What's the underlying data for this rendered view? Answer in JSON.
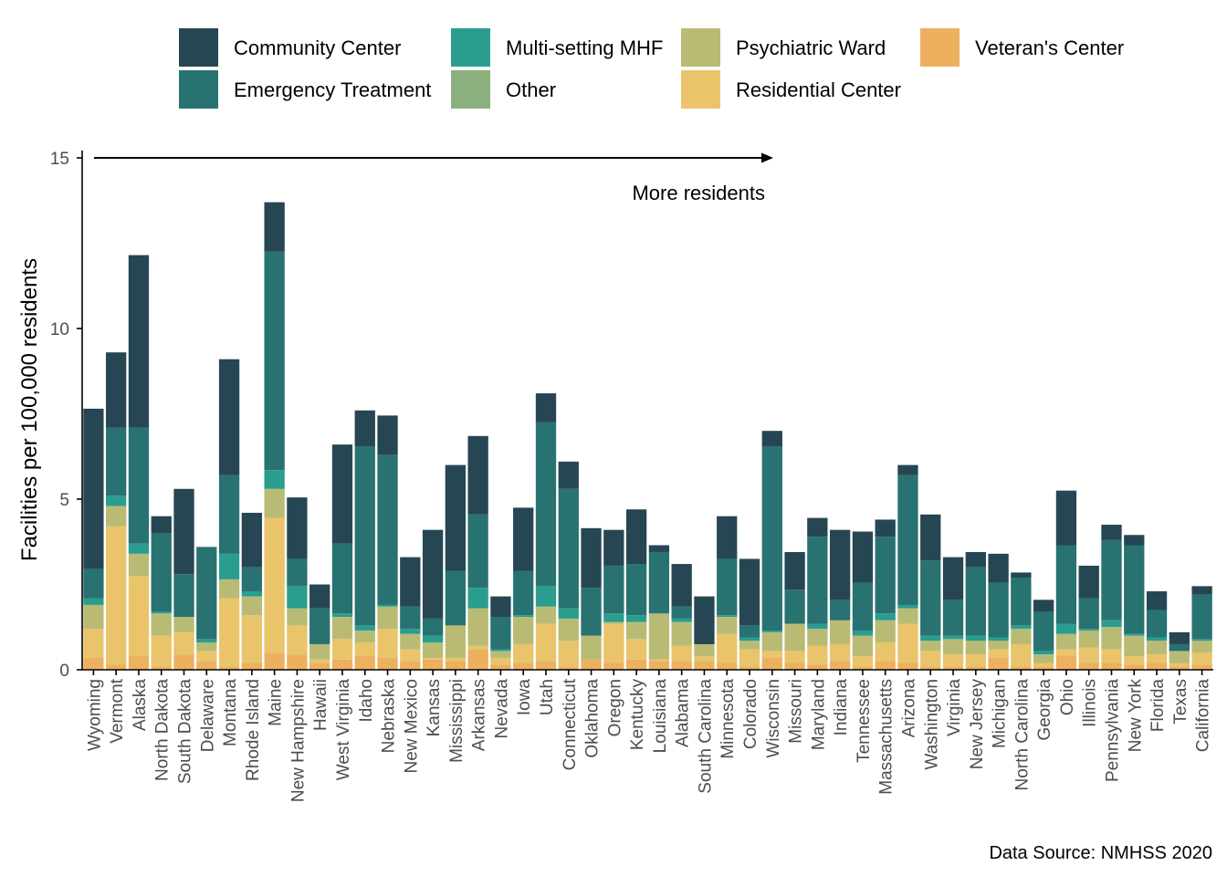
{
  "chart_data": {
    "type": "bar",
    "stacked": true,
    "title": "",
    "xlabel": "",
    "ylabel": "Facilities per 100,000 residents",
    "ylim": [
      0,
      15
    ],
    "yticks": [
      0,
      5,
      10,
      15
    ],
    "grid": false,
    "legend_position": "top",
    "annotation": "More residents",
    "source": "Data Source: NMHSS 2020",
    "categories": [
      "Wyoming",
      "Vermont",
      "Alaska",
      "North Dakota",
      "South Dakota",
      "Delaware",
      "Montana",
      "Rhode Island",
      "Maine",
      "New Hampshire",
      "Hawaii",
      "West Virginia",
      "Idaho",
      "Nebraska",
      "New Mexico",
      "Kansas",
      "Mississippi",
      "Arkansas",
      "Nevada",
      "Iowa",
      "Utah",
      "Connecticut",
      "Oklahoma",
      "Oregon",
      "Kentucky",
      "Louisiana",
      "Alabama",
      "South Carolina",
      "Minnesota",
      "Colorado",
      "Wisconsin",
      "Missouri",
      "Maryland",
      "Indiana",
      "Tennessee",
      "Massachusetts",
      "Arizona",
      "Washington",
      "Virginia",
      "New Jersey",
      "Michigan",
      "North Carolina",
      "Georgia",
      "Ohio",
      "Illinois",
      "Pennsylvania",
      "New York",
      "Florida",
      "Texas",
      "California"
    ],
    "series": [
      {
        "name": "Veteran's Center",
        "color": "#ECB05F",
        "values": [
          0.35,
          0.15,
          0.4,
          0.1,
          0.45,
          0.25,
          0.1,
          0.2,
          0.5,
          0.45,
          0.2,
          0.3,
          0.4,
          0.35,
          0.25,
          0.3,
          0.25,
          0.6,
          0.15,
          0.2,
          0.25,
          0.1,
          0.3,
          0.2,
          0.3,
          0.25,
          0.25,
          0.25,
          0.2,
          0.1,
          0.35,
          0.2,
          0.15,
          0.25,
          0.1,
          0.25,
          0.2,
          0.1,
          0.1,
          0.1,
          0.35,
          0.1,
          0.1,
          0.4,
          0.2,
          0.2,
          0.15,
          0.2,
          0.1,
          0.15
        ]
      },
      {
        "name": "Residential Center",
        "color": "#E9C46A",
        "values": [
          0.85,
          4.05,
          2.35,
          0.9,
          0.65,
          0.3,
          2.0,
          1.4,
          3.95,
          0.85,
          0.1,
          0.6,
          0.4,
          0.85,
          0.35,
          0.05,
          0.1,
          0.1,
          0.2,
          0.55,
          1.1,
          0.75,
          0.0,
          1.15,
          0.6,
          0.05,
          0.45,
          0.15,
          0.85,
          0.5,
          0.2,
          0.35,
          0.55,
          0.5,
          0.3,
          0.55,
          1.15,
          0.45,
          0.35,
          0.35,
          0.25,
          0.65,
          0.1,
          0.2,
          0.45,
          0.4,
          0.25,
          0.25,
          0.1,
          0.35
        ]
      },
      {
        "name": "Psychiatric Ward",
        "color": "#B9BB74",
        "values": [
          0.7,
          0.6,
          0.65,
          0.65,
          0.45,
          0.25,
          0.55,
          0.55,
          0.85,
          0.5,
          0.45,
          0.65,
          0.35,
          0.65,
          0.45,
          0.45,
          0.95,
          1.1,
          0.2,
          0.8,
          0.5,
          0.65,
          0.7,
          0.05,
          0.5,
          1.35,
          0.7,
          0.35,
          0.5,
          0.25,
          0.55,
          0.8,
          0.5,
          0.7,
          0.6,
          0.65,
          0.45,
          0.3,
          0.45,
          0.4,
          0.25,
          0.45,
          0.25,
          0.45,
          0.5,
          0.65,
          0.6,
          0.4,
          0.35,
          0.35
        ]
      },
      {
        "name": "Other",
        "color": "#8AB17D",
        "values": [
          0.0,
          0.0,
          0.0,
          0.0,
          0.0,
          0.0,
          0.0,
          0.0,
          0.0,
          0.0,
          0.0,
          0.0,
          0.0,
          0.0,
          0.0,
          0.0,
          0.0,
          0.0,
          0.0,
          0.0,
          0.0,
          0.0,
          0.0,
          0.0,
          0.0,
          0.0,
          0.0,
          0.0,
          0.0,
          0.0,
          0.0,
          0.0,
          0.0,
          0.0,
          0.0,
          0.0,
          0.0,
          0.0,
          0.0,
          0.0,
          0.0,
          0.0,
          0.0,
          0.0,
          0.0,
          0.0,
          0.0,
          0.0,
          0.0,
          0.0
        ]
      },
      {
        "name": "Multi-setting MHF",
        "color": "#2A9D8F",
        "values": [
          0.2,
          0.3,
          0.3,
          0.05,
          0.0,
          0.1,
          0.75,
          0.15,
          0.55,
          0.65,
          0.0,
          0.1,
          0.15,
          0.05,
          0.15,
          0.2,
          0.0,
          0.6,
          0.05,
          0.05,
          0.6,
          0.3,
          0.0,
          0.25,
          0.2,
          0.0,
          0.1,
          0.0,
          0.05,
          0.1,
          0.05,
          0.0,
          0.15,
          0.0,
          0.15,
          0.2,
          0.1,
          0.15,
          0.1,
          0.15,
          0.1,
          0.1,
          0.1,
          0.3,
          0.05,
          0.2,
          0.05,
          0.1,
          0.0,
          0.05
        ]
      },
      {
        "name": "Emergency Treatment",
        "color": "#287271",
        "values": [
          0.85,
          2.0,
          3.4,
          2.3,
          1.25,
          2.7,
          2.3,
          0.7,
          6.4,
          0.8,
          1.05,
          2.05,
          5.25,
          4.4,
          0.65,
          0.5,
          1.6,
          2.15,
          0.95,
          1.3,
          4.8,
          3.5,
          1.4,
          1.4,
          1.5,
          1.8,
          0.35,
          0.0,
          1.65,
          0.35,
          5.4,
          1.0,
          2.55,
          0.6,
          1.4,
          2.25,
          3.8,
          2.2,
          1.05,
          2.0,
          1.6,
          1.4,
          1.15,
          2.3,
          0.9,
          2.35,
          2.6,
          0.8,
          0.2,
          1.3
        ]
      },
      {
        "name": "Community Center",
        "color": "#264653",
        "values": [
          4.7,
          2.2,
          5.05,
          0.5,
          2.5,
          0.0,
          3.4,
          1.6,
          1.45,
          1.8,
          0.7,
          2.9,
          1.05,
          1.15,
          1.45,
          2.6,
          3.1,
          2.3,
          0.6,
          1.85,
          0.85,
          0.8,
          1.75,
          1.05,
          1.6,
          0.2,
          1.25,
          1.4,
          1.25,
          1.95,
          0.45,
          1.1,
          0.55,
          2.05,
          1.5,
          0.5,
          0.3,
          1.35,
          1.25,
          0.45,
          0.85,
          0.15,
          0.35,
          1.6,
          0.95,
          0.45,
          0.3,
          0.55,
          0.35,
          0.25
        ]
      }
    ]
  },
  "legend": {
    "items": [
      {
        "label": "Community Center",
        "color": "#264653"
      },
      {
        "label": "Emergency Treatment",
        "color": "#287271"
      },
      {
        "label": "Multi-setting MHF",
        "color": "#2A9D8F"
      },
      {
        "label": "Other",
        "color": "#8AB17D"
      },
      {
        "label": "Psychiatric Ward",
        "color": "#B9BB74"
      },
      {
        "label": "Residential Center",
        "color": "#E9C46A"
      },
      {
        "label": "Veteran's Center",
        "color": "#ECB05F"
      }
    ]
  }
}
